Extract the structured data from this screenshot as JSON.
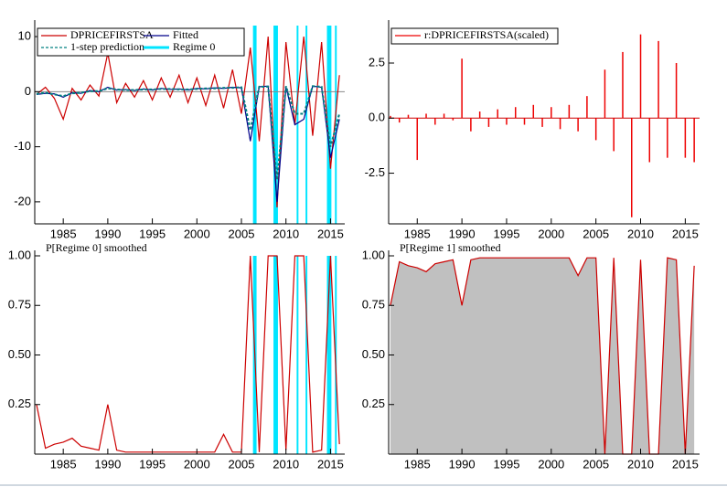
{
  "chart_data": [
    {
      "type": "line",
      "x": [
        1982,
        1983,
        1984,
        1985,
        1986,
        1987,
        1988,
        1989,
        1990,
        1991,
        1992,
        1993,
        1994,
        1995,
        1996,
        1997,
        1998,
        1999,
        2000,
        2001,
        2002,
        2003,
        2004,
        2005,
        2006,
        2007,
        2008,
        2009,
        2010,
        2011,
        2012,
        2013,
        2014,
        2015,
        2016
      ],
      "series": [
        {
          "name": "DPRICEFIRSTSA",
          "color": "#cc0000",
          "values": [
            -0.5,
            0.8,
            -1.2,
            -5,
            0.6,
            -1.5,
            1.2,
            -0.8,
            7,
            -2,
            1.5,
            -1,
            2,
            -1.5,
            2.5,
            -1,
            3,
            -2,
            2.5,
            -2.5,
            3,
            -3,
            4,
            -4,
            8,
            -9,
            10,
            -21,
            9,
            -6,
            10,
            -8,
            9,
            -14,
            3
          ]
        },
        {
          "name": "Fitted",
          "color": "#00008b",
          "values": [
            -0.5,
            -0.3,
            -0.4,
            -1,
            -0.2,
            -0.3,
            0.2,
            0,
            0.8,
            0.3,
            0.4,
            0.2,
            0.5,
            0.3,
            0.6,
            0.4,
            0.5,
            0.3,
            0.6,
            0.5,
            0.7,
            0.6,
            0.8,
            0.7,
            -9,
            0.9,
            1,
            -20,
            0.9,
            -6,
            -5,
            1,
            0.8,
            -12,
            -5
          ]
        },
        {
          "name": "1-step prediction",
          "color": "#008080",
          "dash": true,
          "values": [
            -0.4,
            -0.2,
            -0.5,
            -0.8,
            -0.3,
            -0.2,
            0.1,
            0.1,
            0.6,
            0.4,
            0.3,
            0.3,
            0.4,
            0.4,
            0.5,
            0.5,
            0.4,
            0.4,
            0.5,
            0.6,
            0.6,
            0.7,
            0.7,
            0.8,
            -7,
            0.9,
            0.9,
            -16,
            1,
            -4,
            -4,
            1,
            0.9,
            -10,
            -4
          ]
        }
      ],
      "regions": {
        "name": "Regime 0",
        "color": "#00e5ff",
        "spans": [
          [
            2006.3,
            2006.7
          ],
          [
            2008.6,
            2009.1
          ],
          [
            2011.2,
            2011.4
          ],
          [
            2012.2,
            2012.4
          ],
          [
            2014.6,
            2015.1
          ],
          [
            2015.5,
            2015.7
          ]
        ]
      },
      "xlim": [
        1981.8,
        2016.6
      ],
      "xticks": [
        1985,
        1990,
        1995,
        2000,
        2005,
        2010,
        2015
      ],
      "ylim": [
        -24,
        12
      ],
      "yticks": [
        -20,
        -10,
        0,
        10
      ],
      "legend": "top-left"
    },
    {
      "type": "bar",
      "x": [
        1982,
        1983,
        1984,
        1985,
        1986,
        1987,
        1988,
        1989,
        1990,
        1991,
        1992,
        1993,
        1994,
        1995,
        1996,
        1997,
        1998,
        1999,
        2000,
        2001,
        2002,
        2003,
        2004,
        2005,
        2006,
        2007,
        2008,
        2009,
        2010,
        2011,
        2012,
        2013,
        2014,
        2015,
        2016
      ],
      "series": [
        {
          "name": "r:DPRICEFIRSTSA(scaled)",
          "color": "#ee0000",
          "values": [
            0.1,
            -0.2,
            0.15,
            -1.9,
            0.2,
            -0.3,
            0.2,
            -0.1,
            2.7,
            -0.6,
            0.3,
            -0.4,
            0.4,
            -0.3,
            0.5,
            -0.3,
            0.6,
            -0.4,
            0.5,
            -0.5,
            0.6,
            -0.6,
            1,
            -1,
            2.2,
            -1.5,
            3,
            -4.5,
            3.8,
            -2,
            3.5,
            -1.8,
            2.5,
            -1.8,
            -2
          ]
        }
      ],
      "xlim": [
        1981.8,
        2016.6
      ],
      "xticks": [
        1985,
        1990,
        1995,
        2000,
        2005,
        2010,
        2015
      ],
      "ylim": [
        -4.8,
        4.2
      ],
      "yticks": [
        -2.5,
        {
          "value": 0,
          "label": "0.0"
        },
        2.5
      ],
      "legend": "top-left"
    },
    {
      "type": "line",
      "title": "P[Regime 0] smoothed",
      "x": [
        1982,
        1983,
        1984,
        1985,
        1986,
        1987,
        1988,
        1989,
        1990,
        1991,
        1992,
        1993,
        1994,
        1995,
        1996,
        1997,
        1998,
        1999,
        2000,
        2001,
        2002,
        2003,
        2004,
        2005,
        2006,
        2007,
        2008,
        2009,
        2010,
        2011,
        2012,
        2013,
        2014,
        2015,
        2016
      ],
      "series": [
        {
          "color": "#cc0000",
          "values": [
            0.25,
            0.03,
            0.05,
            0.06,
            0.08,
            0.04,
            0.03,
            0.02,
            0.25,
            0.02,
            0.01,
            0.01,
            0.01,
            0.01,
            0.01,
            0.01,
            0.01,
            0.01,
            0.01,
            0.01,
            0.01,
            0.1,
            0.01,
            0.01,
            1,
            0.01,
            1,
            1,
            0.02,
            1,
            1,
            0.01,
            0.02,
            1,
            0.05
          ]
        }
      ],
      "regions": {
        "color": "#00e5ff",
        "spans": [
          [
            2006.3,
            2006.7
          ],
          [
            2008.6,
            2009.1
          ],
          [
            2011.2,
            2011.4
          ],
          [
            2012.2,
            2012.4
          ],
          [
            2014.6,
            2015.1
          ],
          [
            2015.5,
            2015.7
          ]
        ]
      },
      "xlim": [
        1981.8,
        2016.6
      ],
      "xticks": [
        1985,
        1990,
        1995,
        2000,
        2005,
        2010,
        2015
      ],
      "ylim": [
        0,
        1
      ],
      "yticks": [
        0.25,
        {
          "value": 0.5,
          "label": "0.50"
        },
        0.75,
        {
          "value": 1,
          "label": "1.00"
        }
      ]
    },
    {
      "type": "area",
      "title": "P[Regime 1] smoothed",
      "x": [
        1982,
        1983,
        1984,
        1985,
        1986,
        1987,
        1988,
        1989,
        1990,
        1991,
        1992,
        1993,
        1994,
        1995,
        1996,
        1997,
        1998,
        1999,
        2000,
        2001,
        2002,
        2003,
        2004,
        2005,
        2006,
        2007,
        2008,
        2009,
        2010,
        2011,
        2012,
        2013,
        2014,
        2015,
        2016
      ],
      "series": [
        {
          "color": "#cc0000",
          "fill": "#c0c0c0",
          "values": [
            0.75,
            0.97,
            0.95,
            0.94,
            0.92,
            0.96,
            0.97,
            0.98,
            0.75,
            0.98,
            0.99,
            0.99,
            0.99,
            0.99,
            0.99,
            0.99,
            0.99,
            0.99,
            0.99,
            0.99,
            0.99,
            0.9,
            0.99,
            0.99,
            0,
            0.99,
            0,
            0,
            0.98,
            0,
            0,
            0.99,
            0.98,
            0,
            0.95
          ]
        }
      ],
      "xlim": [
        1981.8,
        2016.6
      ],
      "xticks": [
        1985,
        1990,
        1995,
        2000,
        2005,
        2010,
        2015
      ],
      "ylim": [
        0,
        1
      ],
      "yticks": [
        0.25,
        {
          "value": 0.5,
          "label": "0.50"
        },
        0.75,
        {
          "value": 1,
          "label": "1.00"
        }
      ]
    }
  ]
}
